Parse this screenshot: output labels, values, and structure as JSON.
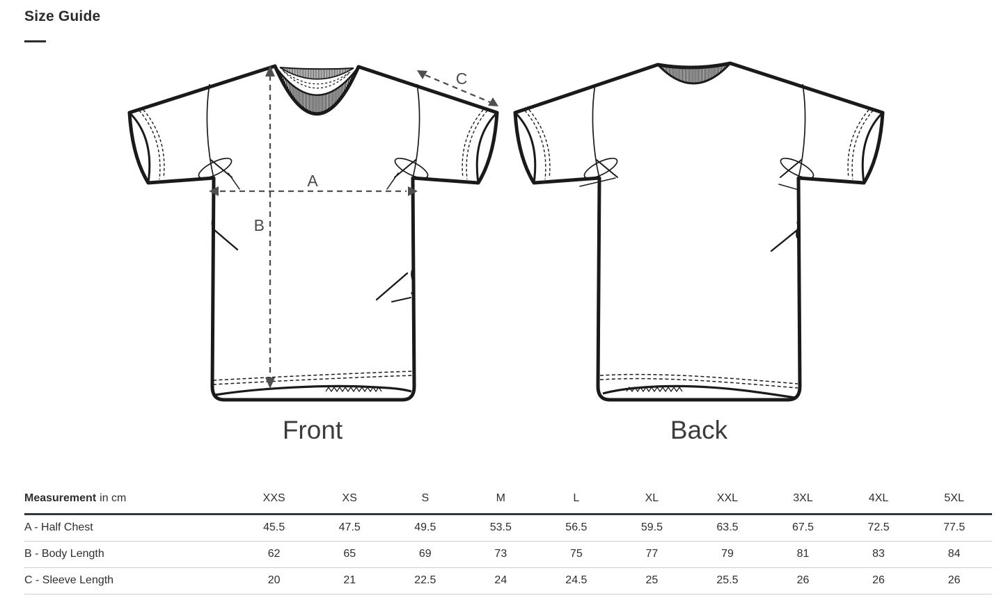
{
  "page": {
    "title": "Size Guide"
  },
  "diagram": {
    "front_label": "Front",
    "back_label": "Back",
    "labels": {
      "a": "A",
      "b": "B",
      "c": "C"
    }
  },
  "table": {
    "header": {
      "measurement": "Measurement",
      "unit": "in cm",
      "sizes": [
        "XXS",
        "XS",
        "S",
        "M",
        "L",
        "XL",
        "XXL",
        "3XL",
        "4XL",
        "5XL"
      ]
    },
    "rows": [
      {
        "label": "A - Half Chest",
        "values": [
          "45.5",
          "47.5",
          "49.5",
          "53.5",
          "56.5",
          "59.5",
          "63.5",
          "67.5",
          "72.5",
          "77.5"
        ]
      },
      {
        "label": "B - Body Length",
        "values": [
          "62",
          "65",
          "69",
          "73",
          "75",
          "77",
          "79",
          "81",
          "83",
          "84"
        ]
      },
      {
        "label": "C - Sleeve Length",
        "values": [
          "20",
          "21",
          "22.5",
          "24",
          "24.5",
          "25",
          "25.5",
          "26",
          "26",
          "26"
        ]
      }
    ]
  },
  "colors": {
    "ink": "#1a1a1a",
    "dimension_gray": "#4f4f4f",
    "caption_gray": "#3c3c3c",
    "strong_border": "#34373c",
    "light_border": "#cccccc"
  }
}
